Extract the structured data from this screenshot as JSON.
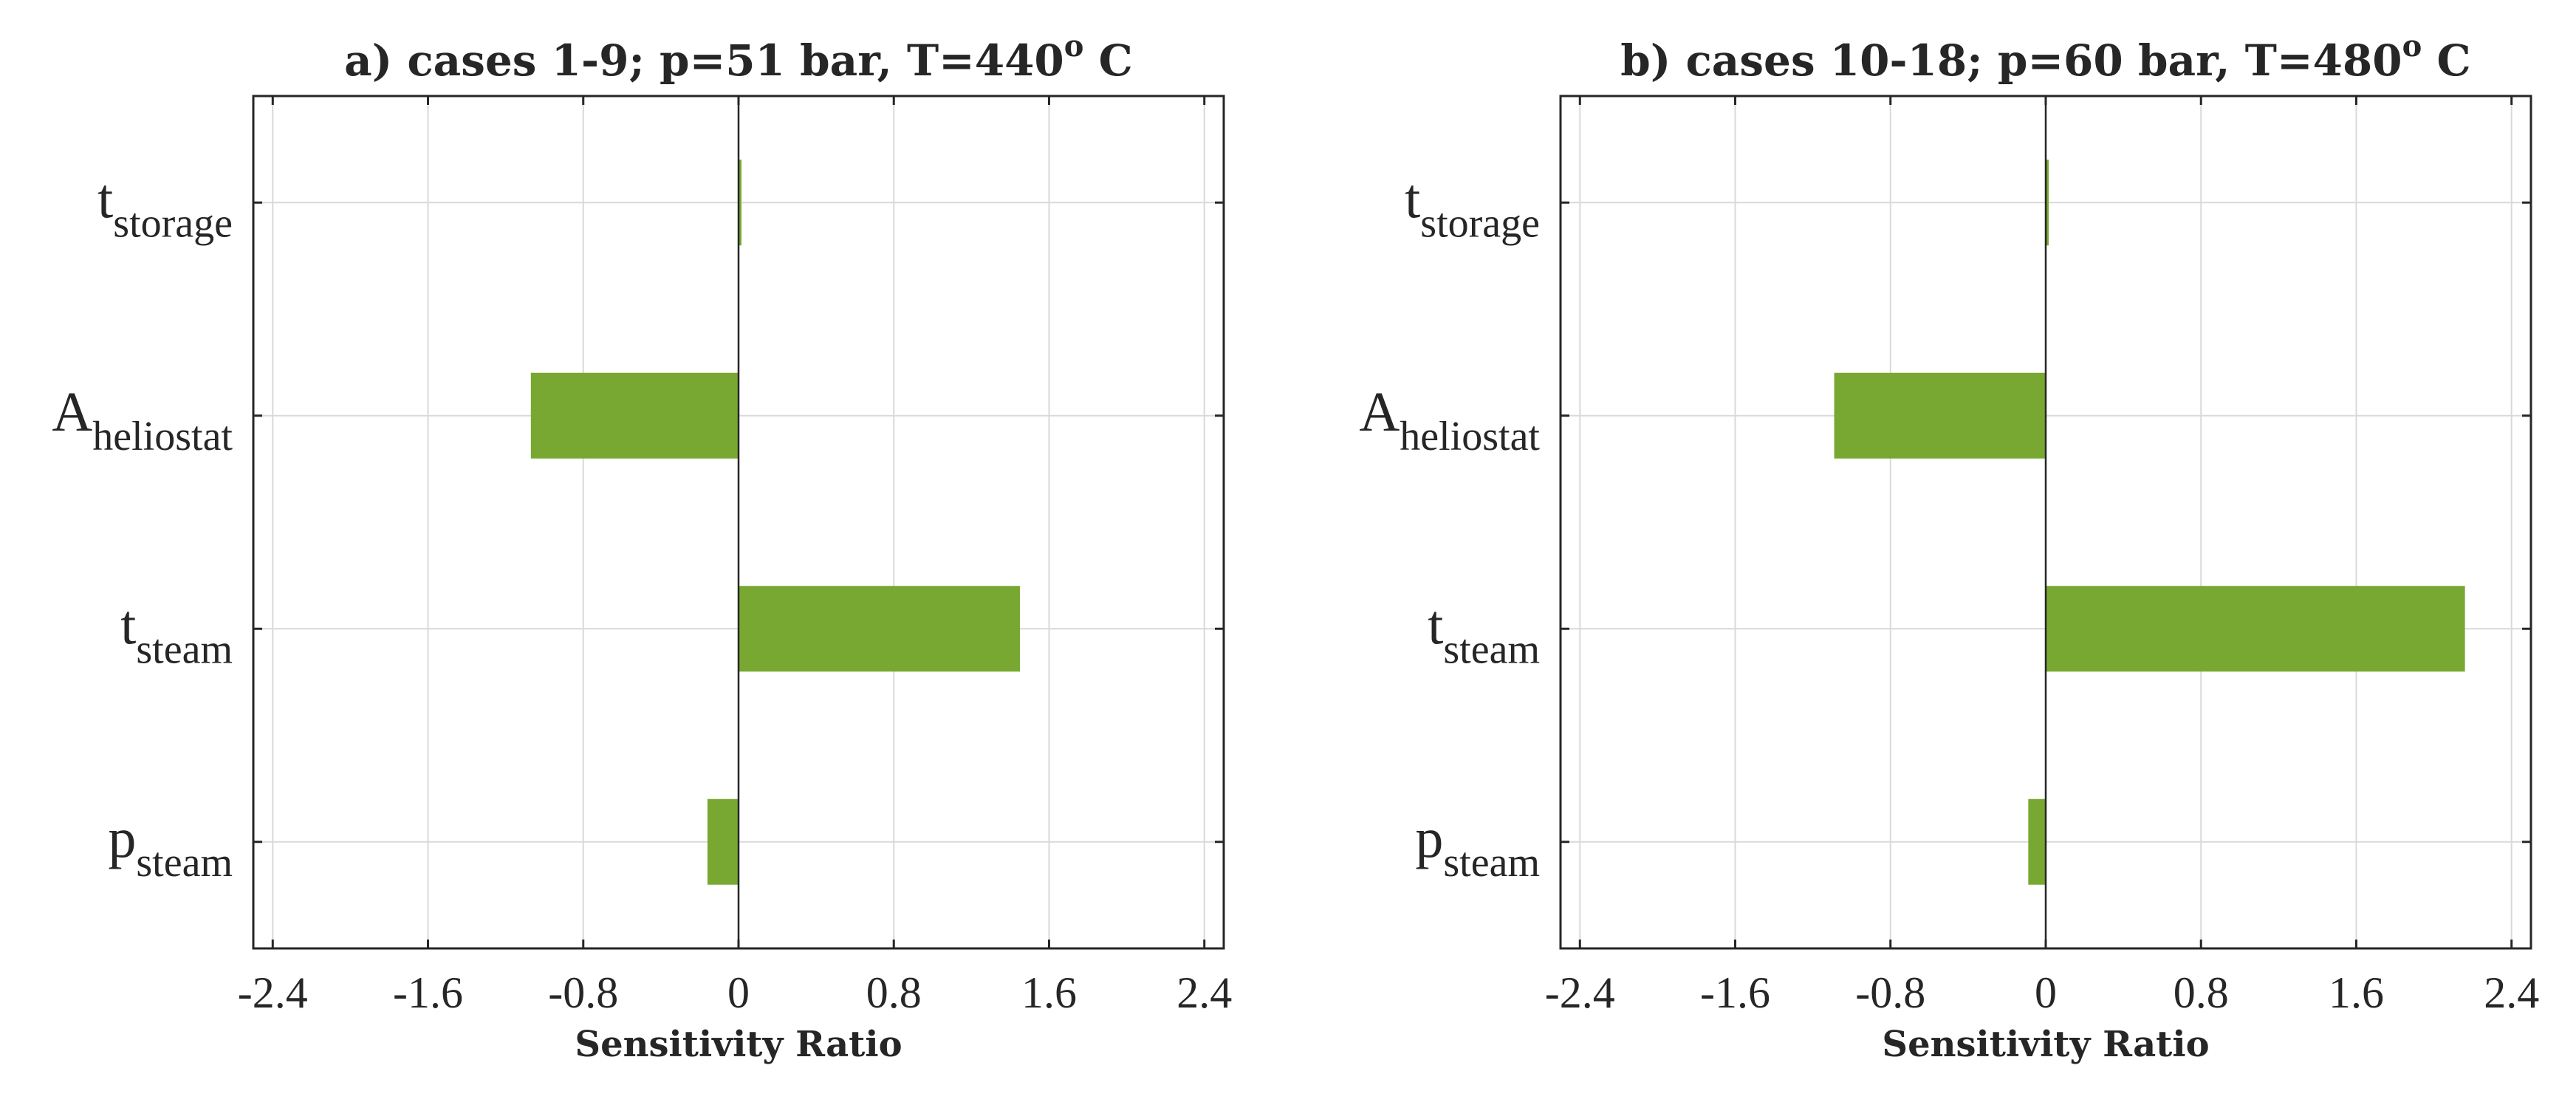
{
  "chart_data": [
    {
      "type": "bar",
      "orientation": "horizontal",
      "title": "a) cases 1-9; p=51 bar, T=440",
      "title_sup": "o",
      "title_suffix": " C",
      "xlabel": "Sensitivity Ratio",
      "xlim": [
        -2.5,
        2.5
      ],
      "xticks": [
        "-2.4",
        "-1.6",
        "-0.8",
        "0",
        "0.8",
        "1.6",
        "2.4"
      ],
      "xtick_values": [
        -2.4,
        -1.6,
        -0.8,
        0,
        0.8,
        1.6,
        2.4
      ],
      "grid": true,
      "categories": [
        {
          "main": "t",
          "sub": "storage"
        },
        {
          "main": "A",
          "sub": "heliostat"
        },
        {
          "main": "t",
          "sub": "steam"
        },
        {
          "main": "p",
          "sub": "steam"
        }
      ],
      "values": [
        0.01,
        -1.07,
        1.45,
        -0.16
      ]
    },
    {
      "type": "bar",
      "orientation": "horizontal",
      "title": "b) cases 10-18; p=60 bar, T=480",
      "title_sup": "o",
      "title_suffix": " C",
      "xlabel": "Sensitivity Ratio",
      "xlim": [
        -2.5,
        2.5
      ],
      "xticks": [
        "-2.4",
        "-1.6",
        "-0.8",
        "0",
        "0.8",
        "1.6",
        "2.4"
      ],
      "xtick_values": [
        -2.4,
        -1.6,
        -0.8,
        0,
        0.8,
        1.6,
        2.4
      ],
      "grid": true,
      "categories": [
        {
          "main": "t",
          "sub": "storage"
        },
        {
          "main": "A",
          "sub": "heliostat"
        },
        {
          "main": "t",
          "sub": "steam"
        },
        {
          "main": "p",
          "sub": "steam"
        }
      ],
      "values": [
        0.01,
        -1.09,
        2.16,
        -0.09
      ]
    }
  ],
  "colors": {
    "bar": "#78a832",
    "axis": "#262626",
    "grid": "#d9d9d9",
    "zero_line": "#262626"
  }
}
